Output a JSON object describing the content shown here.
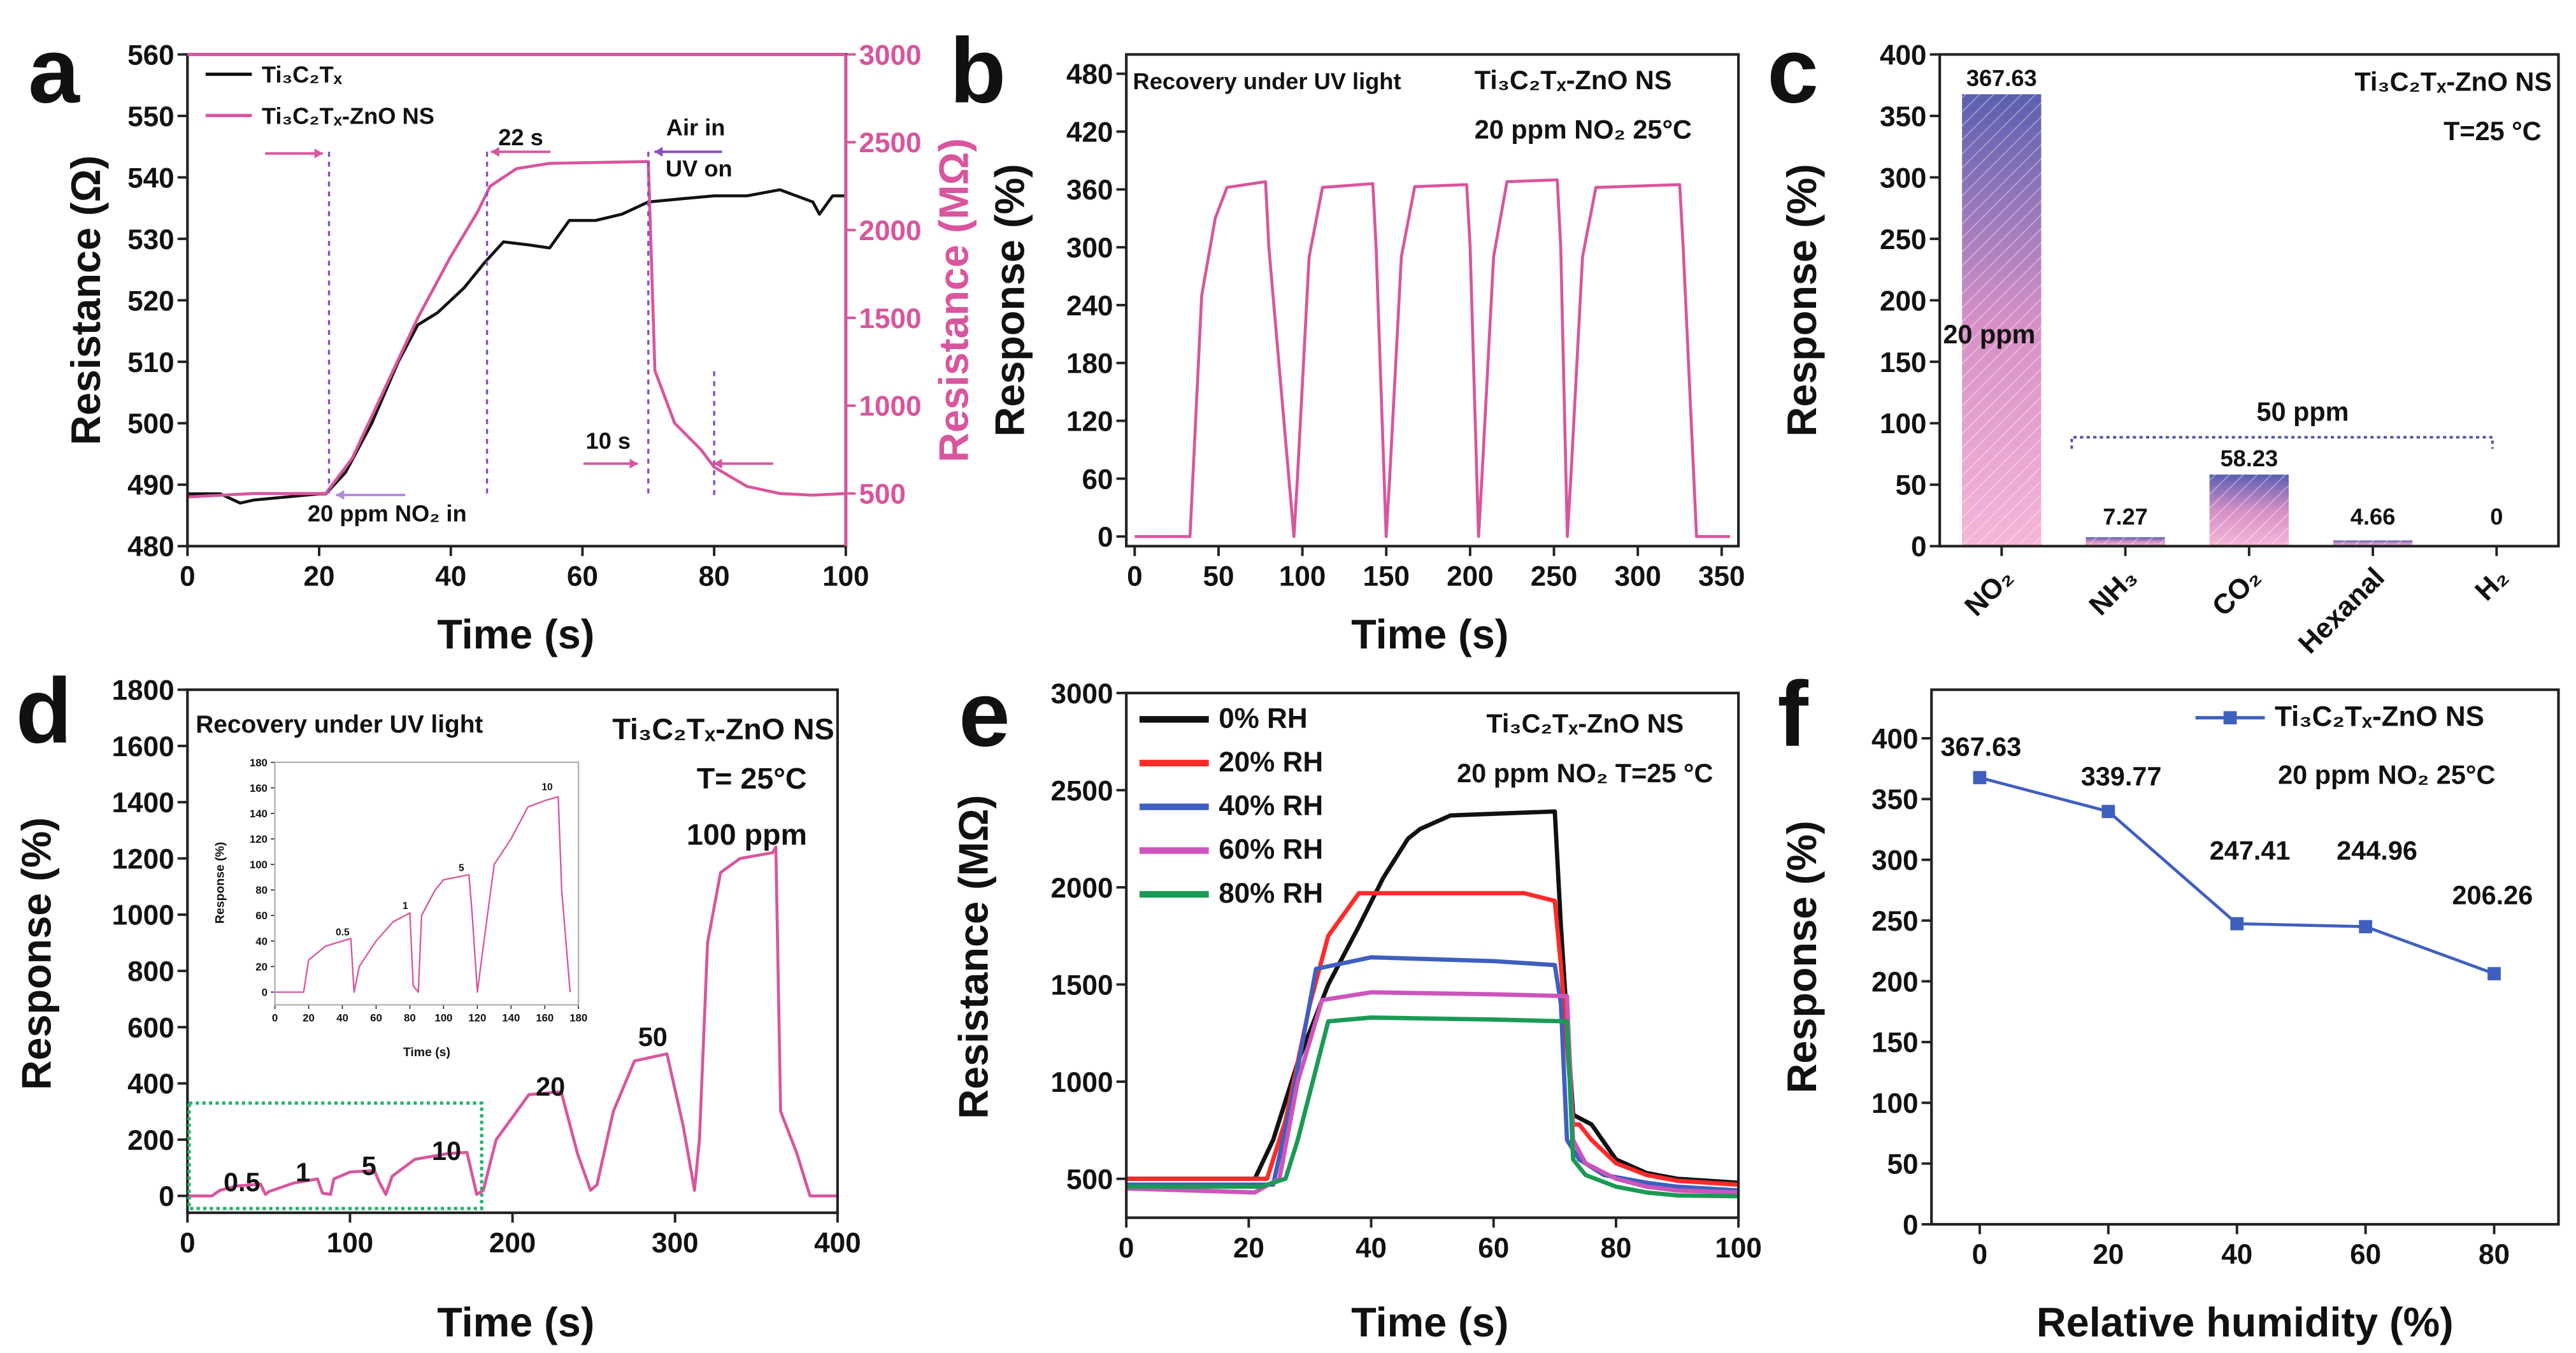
{
  "colors": {
    "pink": "#d9559d",
    "black": "#111111",
    "blue": "#3f5fbf",
    "green": "#1a9a55",
    "red": "#ff2a2a",
    "magenta": "#cc55bb",
    "bar_top": "#5a5fb0",
    "bar_bottom": "#f6b6d8"
  },
  "chart_data": [
    {
      "panel": "a",
      "type": "line",
      "xlabel": "Time (s)",
      "ylabel": "Resistance (Ω)",
      "y2label": "Resistance (MΩ)",
      "xlim": [
        0,
        100
      ],
      "ylim": [
        480,
        560
      ],
      "y2lim": [
        200,
        3000
      ],
      "xticks": [
        0,
        20,
        40,
        60,
        80,
        100
      ],
      "yticks": [
        480,
        490,
        500,
        510,
        520,
        530,
        540,
        550,
        560
      ],
      "y2ticks": [
        500,
        1000,
        1500,
        2000,
        2500,
        3000
      ],
      "legend": "top-left",
      "series": [
        {
          "name": "Ti₃C₂Tₓ",
          "color": "#111111",
          "axis": "left",
          "x": [
            0,
            5,
            8,
            10,
            15,
            20,
            21,
            24,
            28,
            32,
            35,
            38,
            42,
            45,
            48,
            52,
            55,
            58,
            62,
            66,
            70,
            75,
            80,
            85,
            90,
            95,
            96,
            98,
            100
          ],
          "y": [
            488.5,
            488.5,
            487,
            487.5,
            488,
            488.5,
            488.5,
            492,
            500,
            510,
            516,
            518,
            522,
            526,
            529.5,
            529,
            528.5,
            533,
            533,
            534,
            536,
            536.5,
            537,
            537,
            538,
            536,
            534,
            537,
            537
          ]
        },
        {
          "name": "Ti₃C₂Tₓ-ZnO NS",
          "color": "#d9559d",
          "axis": "right",
          "x": [
            0,
            10,
            21,
            25,
            30,
            35,
            40,
            44,
            46,
            50,
            55,
            70,
            71,
            74,
            78,
            80,
            85,
            90,
            95,
            100
          ],
          "y": [
            480,
            500,
            500,
            700,
            1100,
            1500,
            1850,
            2100,
            2250,
            2350,
            2380,
            2390,
            1200,
            900,
            750,
            650,
            540,
            500,
            490,
            500
          ]
        }
      ],
      "annotations": [
        "22 s",
        "Air in",
        "UV on",
        "10 s",
        "20 ppm NO₂ in"
      ]
    },
    {
      "panel": "b",
      "type": "line",
      "xlabel": "Time (s)",
      "ylabel": "Response (%)",
      "xlim": [
        -5,
        360
      ],
      "ylim": [
        -10,
        500
      ],
      "xticks": [
        0,
        50,
        100,
        150,
        200,
        250,
        300,
        350
      ],
      "yticks": [
        0,
        60,
        120,
        180,
        240,
        300,
        360,
        420,
        480
      ],
      "series": [
        {
          "color": "#d9559d",
          "x": [
            0,
            33,
            40,
            48,
            55,
            78,
            80,
            95,
            97,
            104,
            112,
            142,
            144,
            150,
            152,
            159,
            167,
            198,
            200,
            205,
            207,
            214,
            222,
            252,
            254,
            258,
            260,
            267,
            275,
            325,
            327,
            335,
            355
          ],
          "y": [
            0,
            0,
            250,
            330,
            362,
            368,
            300,
            0,
            60,
            290,
            362,
            366,
            300,
            0,
            60,
            290,
            363,
            365,
            300,
            0,
            60,
            290,
            368,
            370,
            300,
            0,
            60,
            290,
            362,
            365,
            300,
            0,
            0
          ]
        }
      ],
      "annotations": [
        "Recovery under UV light",
        "Ti₃C₂Tₓ-ZnO NS",
        "20 ppm NO₂ 25°C"
      ]
    },
    {
      "panel": "c",
      "type": "bar",
      "xlabel": "",
      "ylabel": "Response (%)",
      "ylim": [
        0,
        400
      ],
      "yticks": [
        0,
        50,
        100,
        150,
        200,
        250,
        300,
        350,
        400
      ],
      "categories": [
        "NO₂",
        "NH₃",
        "CO₂",
        "Hexanal",
        "H₂"
      ],
      "values": [
        367.63,
        7.27,
        58.23,
        4.66,
        0
      ],
      "value_labels": [
        "367.63",
        "7.27",
        "58.23",
        "4.66",
        "0"
      ],
      "annotations": [
        "Ti₃C₂Tₓ-ZnO NS",
        "T=25 °C",
        "20 ppm",
        "50 ppm"
      ]
    },
    {
      "panel": "d",
      "type": "line",
      "xlabel": "Time (s)",
      "ylabel": "Response (%)",
      "xlim": [
        0,
        400
      ],
      "ylim": [
        -60,
        1800
      ],
      "xticks": [
        0,
        100,
        200,
        300,
        400
      ],
      "yticks": [
        0,
        200,
        400,
        600,
        800,
        1000,
        1200,
        1400,
        1600,
        1800
      ],
      "series": [
        {
          "color": "#d9559d",
          "x": [
            0,
            15,
            20,
            30,
            45,
            48,
            50,
            65,
            80,
            83,
            88,
            90,
            100,
            115,
            118,
            122,
            126,
            140,
            160,
            172,
            178,
            182,
            190,
            200,
            210,
            230,
            240,
            248,
            252,
            262,
            275,
            295,
            305,
            312,
            315,
            320,
            328,
            340,
            360,
            362,
            365,
            375,
            383,
            400
          ],
          "y": [
            0,
            0,
            20,
            35,
            42,
            5,
            15,
            45,
            60,
            10,
            5,
            60,
            85,
            90,
            50,
            5,
            70,
            130,
            150,
            155,
            5,
            20,
            200,
            280,
            360,
            370,
            150,
            20,
            40,
            300,
            480,
            505,
            250,
            20,
            200,
            900,
            1150,
            1200,
            1220,
            1240,
            300,
            150,
            0,
            0
          ]
        }
      ],
      "annotations": [
        "Recovery under UV light",
        "Ti₃C₂Tₓ-ZnO NS",
        "T= 25°C",
        "100 ppm",
        "0.5",
        "1",
        "5",
        "10",
        "20",
        "50"
      ]
    },
    {
      "panel": "e",
      "type": "line",
      "xlabel": "Time (s)",
      "ylabel": "Resistance (MΩ)",
      "xlim": [
        0,
        100
      ],
      "ylim": [
        300,
        3000
      ],
      "xticks": [
        0,
        20,
        40,
        60,
        80,
        100
      ],
      "yticks": [
        500,
        1000,
        1500,
        2000,
        2500,
        3000
      ],
      "legend": "top-left",
      "series": [
        {
          "name": "0% RH",
          "color": "#111111",
          "x": [
            0,
            21,
            24,
            28,
            33,
            38,
            42,
            46,
            48,
            53,
            70,
            71,
            73,
            76,
            80,
            85,
            90,
            100
          ],
          "y": [
            500,
            500,
            700,
            1100,
            1500,
            1800,
            2050,
            2250,
            2300,
            2370,
            2390,
            1800,
            830,
            780,
            600,
            530,
            500,
            480
          ]
        },
        {
          "name": "20% RH",
          "color": "#ff2a2a",
          "x": [
            0,
            23,
            26,
            30,
            33,
            38,
            45,
            65,
            70,
            71,
            73,
            74,
            76,
            80,
            85,
            90,
            100
          ],
          "y": [
            500,
            500,
            800,
            1400,
            1750,
            1970,
            1970,
            1970,
            1930,
            1600,
            780,
            780,
            700,
            580,
            520,
            490,
            470
          ]
        },
        {
          "name": "40% RH",
          "color": "#3f5fbf",
          "x": [
            0,
            24,
            27,
            31,
            40,
            60,
            70,
            71,
            72,
            74,
            78,
            85,
            90,
            100
          ],
          "y": [
            470,
            470,
            900,
            1580,
            1640,
            1620,
            1600,
            1400,
            700,
            600,
            520,
            480,
            460,
            440
          ]
        },
        {
          "name": "60% RH",
          "color": "#cc55bb",
          "x": [
            0,
            21,
            25,
            28,
            32,
            40,
            60,
            72,
            73,
            75,
            80,
            85,
            90,
            100
          ],
          "y": [
            450,
            430,
            500,
            1000,
            1420,
            1460,
            1450,
            1440,
            700,
            580,
            500,
            460,
            440,
            430
          ]
        },
        {
          "name": "80% RH",
          "color": "#1a9a55",
          "x": [
            0,
            22,
            26,
            28,
            33,
            40,
            60,
            72,
            73,
            75,
            80,
            85,
            90,
            100
          ],
          "y": [
            460,
            460,
            500,
            700,
            1310,
            1330,
            1320,
            1310,
            600,
            520,
            460,
            430,
            415,
            410
          ]
        }
      ],
      "annotations": [
        "Ti₃C₂Tₓ-ZnO NS",
        "20 ppm NO₂ T=25 °C"
      ]
    },
    {
      "panel": "f",
      "type": "line",
      "xlabel": "Relative humidity (%)",
      "ylabel": "Response (%)",
      "xlim": [
        -7.5,
        90
      ],
      "ylim": [
        0,
        440
      ],
      "xticks": [
        0,
        20,
        40,
        60,
        80
      ],
      "yticks": [
        0,
        50,
        100,
        150,
        200,
        250,
        300,
        350,
        400
      ],
      "legend": "top-right",
      "series": [
        {
          "name": "Ti₃C₂Tₓ-ZnO NS",
          "color": "#3f5fbf",
          "marker": "square",
          "x": [
            0,
            20,
            40,
            60,
            80
          ],
          "y": [
            367.63,
            339.77,
            247.41,
            244.96,
            206.26
          ],
          "labels": [
            "367.63",
            "339.77",
            "247.41",
            "244.96",
            "206.26"
          ]
        }
      ],
      "annotations": [
        "20 ppm NO₂ 25°C"
      ]
    },
    {
      "panel": "d-inset",
      "type": "line",
      "xlabel": "Time (s)",
      "ylabel": "Response (%)",
      "xlim": [
        0,
        180
      ],
      "ylim": [
        -10,
        180
      ],
      "xticks": [
        0,
        20,
        40,
        60,
        80,
        100,
        120,
        140,
        160,
        180
      ],
      "yticks": [
        0,
        20,
        40,
        60,
        80,
        100,
        120,
        140,
        160,
        180
      ],
      "series": [
        {
          "color": "#d9559d",
          "x": [
            0,
            17,
            20,
            30,
            45,
            47,
            50,
            60,
            70,
            80,
            82,
            85,
            87,
            95,
            100,
            115,
            117,
            120,
            123,
            130,
            140,
            150,
            160,
            168,
            170,
            175
          ],
          "y": [
            0,
            0,
            25,
            36,
            42,
            0,
            20,
            40,
            55,
            62,
            5,
            0,
            60,
            80,
            88,
            92,
            60,
            0,
            30,
            100,
            120,
            145,
            150,
            153,
            80,
            0
          ]
        }
      ],
      "annotations": [
        "0.5",
        "1",
        "5",
        "10"
      ]
    }
  ]
}
